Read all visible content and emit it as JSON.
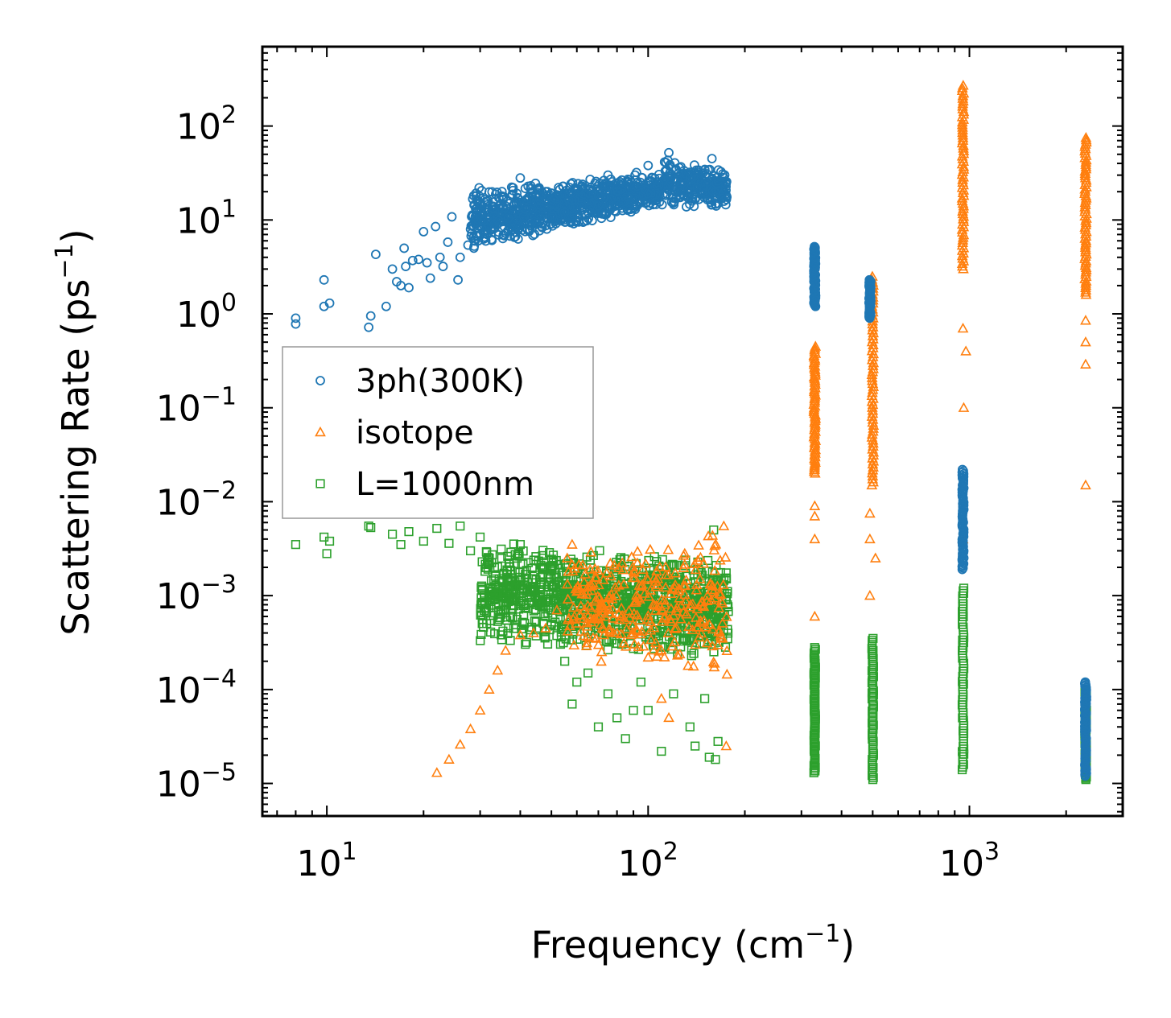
{
  "chart_data": {
    "type": "scatter",
    "title": "",
    "xlabel": "Frequency (cm",
    "xlabel_sup": "−1",
    "xlabel_end": ")",
    "ylabel": "Scattering Rate (ps",
    "ylabel_sup": "−1",
    "ylabel_end": ")",
    "xscale": "log",
    "yscale": "log",
    "xlim": [
      6.3,
      3000
    ],
    "ylim": [
      4.5e-06,
      700
    ],
    "legend_position": "center-left",
    "x_ticks": [
      {
        "value": 10,
        "base": "10",
        "exp": "1"
      },
      {
        "value": 100,
        "base": "10",
        "exp": "2"
      },
      {
        "value": 1000,
        "base": "10",
        "exp": "3"
      }
    ],
    "y_ticks": [
      {
        "value": 1e-05,
        "base": "10",
        "exp": "−5"
      },
      {
        "value": 0.0001,
        "base": "10",
        "exp": "−4"
      },
      {
        "value": 0.001,
        "base": "10",
        "exp": "−3"
      },
      {
        "value": 0.01,
        "base": "10",
        "exp": "−2"
      },
      {
        "value": 0.1,
        "base": "10",
        "exp": "−1"
      },
      {
        "value": 1,
        "base": "10",
        "exp": "0"
      },
      {
        "value": 10,
        "base": "10",
        "exp": "1"
      },
      {
        "value": 100,
        "base": "10",
        "exp": "2"
      }
    ],
    "series": [
      {
        "name": "3ph(300K)",
        "marker": "circle",
        "color": "#1f77b4",
        "points": [
          [
            8,
            0.9
          ],
          [
            8,
            0.78
          ],
          [
            9.8,
            2.3
          ],
          [
            9.8,
            1.2
          ],
          [
            10.2,
            1.3
          ],
          [
            13.5,
            0.72
          ],
          [
            13.7,
            0.95
          ],
          [
            14.2,
            4.3
          ],
          [
            15.3,
            1.2
          ],
          [
            16,
            3
          ],
          [
            16.5,
            2.2
          ],
          [
            17,
            2
          ],
          [
            17.4,
            5
          ],
          [
            17.6,
            3.2
          ],
          [
            18,
            1.9
          ],
          [
            18.5,
            3.7
          ],
          [
            19.3,
            3.8
          ],
          [
            20,
            7.5
          ],
          [
            20.5,
            3.5
          ],
          [
            21,
            2.4
          ],
          [
            21.8,
            8.5
          ],
          [
            22.5,
            4
          ],
          [
            23,
            3.2
          ],
          [
            23.8,
            5.8
          ],
          [
            24.5,
            10.8
          ],
          [
            25.6,
            2.3
          ],
          [
            26,
            4
          ],
          [
            27.5,
            5.4
          ],
          [
            29,
            9
          ],
          [
            31,
            7.2
          ],
          [
            33,
            13
          ],
          [
            35,
            18
          ],
          [
            36,
            12
          ],
          [
            38,
            22
          ],
          [
            40,
            28
          ],
          [
            42,
            16
          ],
          [
            45,
            9
          ],
          [
            48,
            20
          ],
          [
            52,
            14
          ],
          [
            55,
            12
          ],
          [
            58,
            16
          ],
          [
            62,
            21
          ],
          [
            66,
            27
          ],
          [
            70,
            18
          ],
          [
            75,
            30
          ],
          [
            80,
            22
          ],
          [
            86,
            25
          ],
          [
            92,
            32
          ],
          [
            100,
            38
          ],
          [
            108,
            24
          ],
          [
            116,
            52
          ],
          [
            125,
            36
          ],
          [
            135,
            28
          ],
          [
            142,
            22
          ],
          [
            150,
            34
          ],
          [
            158,
            45
          ],
          [
            165,
            26
          ],
          [
            170,
            17
          ]
        ],
        "bands": [
          {
            "xmin": 28,
            "xmax": 112,
            "ylo_start": 4.5,
            "yhi_start": 22,
            "ylo_end": 14,
            "yhi_end": 32,
            "count": 900
          },
          {
            "xmin": 112,
            "xmax": 176,
            "ylo_start": 14,
            "yhi_start": 48,
            "ylo_end": 12,
            "yhi_end": 35,
            "count": 260
          }
        ],
        "columns": [
          {
            "x": 330,
            "ylo": 1.2,
            "yhi": 5.2
          },
          {
            "x": 490,
            "ylo": 0.9,
            "yhi": 2.3
          },
          {
            "x": 955,
            "ylo": 0.0019,
            "yhi": 0.022
          },
          {
            "x": 2300,
            "ylo": 1.2e-05,
            "yhi": 0.00012
          }
        ]
      },
      {
        "name": "isotope",
        "marker": "triangle",
        "color": "#ff7f0e",
        "points": [
          [
            22,
            1.3e-05
          ],
          [
            24,
            1.8e-05
          ],
          [
            26,
            2.6e-05
          ],
          [
            28,
            3.8e-05
          ],
          [
            30,
            6e-05
          ],
          [
            32,
            0.0001
          ],
          [
            34,
            0.00016
          ],
          [
            36,
            0.00026
          ],
          [
            40,
            0.00038
          ],
          [
            44,
            0.0004
          ],
          [
            48,
            0.00045
          ],
          [
            52,
            0.0007
          ],
          [
            56,
            0.0025
          ],
          [
            58,
            0.0035
          ],
          [
            60,
            0.0011
          ],
          [
            65,
            0.0006
          ],
          [
            72,
            0.00045
          ],
          [
            80,
            0.0004
          ],
          [
            90,
            0.0004
          ],
          [
            100,
            0.00022
          ],
          [
            110,
            8e-05
          ],
          [
            116,
            5e-05
          ],
          [
            130,
            0.0028
          ],
          [
            145,
            0.0015
          ],
          [
            160,
            0.0011
          ],
          [
            172,
            0.0055
          ],
          [
            175,
            2.5e-05
          ],
          [
            176,
            0.000145
          ]
        ],
        "bands": [
          {
            "xmin": 56,
            "xmax": 176,
            "ylo_start": 0.0002,
            "yhi_start": 0.0035,
            "ylo_end": 0.00015,
            "yhi_end": 0.005,
            "count": 300
          }
        ],
        "columns": [
          {
            "x": 330,
            "ylo": 0.02,
            "yhi": 0.45
          },
          {
            "x": 500,
            "ylo": 0.015,
            "yhi": 2.5
          },
          {
            "x": 955,
            "ylo": 3,
            "yhi": 270
          },
          {
            "x": 2300,
            "ylo": 1.6,
            "yhi": 75
          }
        ],
        "extras": [
          [
            330,
            0.0006
          ],
          [
            330,
            0.004
          ],
          [
            330,
            0.007
          ],
          [
            330,
            0.009
          ],
          [
            490,
            0.001
          ],
          [
            490,
            0.004
          ],
          [
            490,
            0.0075
          ],
          [
            510,
            0.0025
          ],
          [
            955,
            0.004
          ],
          [
            955,
            0.7
          ],
          [
            960,
            0.1
          ],
          [
            975,
            0.4
          ],
          [
            2300,
            0.29
          ],
          [
            2300,
            0.5
          ],
          [
            2300,
            0.85
          ],
          [
            2300,
            0.015
          ]
        ]
      },
      {
        "name": "L=1000nm",
        "marker": "square",
        "color": "#2ca02c",
        "points": [
          [
            8,
            0.0035
          ],
          [
            9.8,
            0.0042
          ],
          [
            10,
            0.0028
          ],
          [
            10.2,
            0.0038
          ],
          [
            13.5,
            0.0055
          ],
          [
            13.7,
            0.0053
          ],
          [
            16,
            0.0045
          ],
          [
            17,
            0.0035
          ],
          [
            18,
            0.0048
          ],
          [
            20,
            0.0038
          ],
          [
            22,
            0.0052
          ],
          [
            24,
            0.0036
          ],
          [
            26,
            0.0055
          ],
          [
            28,
            0.003
          ],
          [
            30,
            0.0042
          ],
          [
            35,
            0.0025
          ],
          [
            40,
            0.0035
          ],
          [
            45,
            0.0008
          ],
          [
            50,
            0.0005
          ],
          [
            55,
            0.0002
          ],
          [
            58,
            7e-05
          ],
          [
            60,
            0.00012
          ],
          [
            65,
            0.00015
          ],
          [
            70,
            4e-05
          ],
          [
            75,
            9e-05
          ],
          [
            80,
            5e-05
          ],
          [
            85,
            3e-05
          ],
          [
            90,
            6e-05
          ],
          [
            95,
            0.00012
          ],
          [
            100,
            6e-05
          ],
          [
            110,
            2.2e-05
          ],
          [
            120,
            9e-05
          ],
          [
            135,
            4e-05
          ],
          [
            140,
            2.5e-05
          ],
          [
            150,
            8e-05
          ],
          [
            155,
            1.9e-05
          ],
          [
            162,
            1.8e-05
          ],
          [
            165,
            2.8e-05
          ],
          [
            160,
            0.005
          ]
        ],
        "bands": [
          {
            "xmin": 30,
            "xmax": 178,
            "ylo_start": 0.0003,
            "yhi_start": 0.004,
            "ylo_end": 0.0002,
            "yhi_end": 0.0025,
            "count": 1100
          }
        ],
        "columns": [
          {
            "x": 330,
            "ylo": 1.3e-05,
            "yhi": 0.00028
          },
          {
            "x": 500,
            "ylo": 1.1e-05,
            "yhi": 0.00035
          },
          {
            "x": 955,
            "ylo": 1.4e-05,
            "yhi": 0.0012
          },
          {
            "x": 2300,
            "ylo": 1.1e-05,
            "yhi": 0.0001
          }
        ]
      }
    ]
  }
}
